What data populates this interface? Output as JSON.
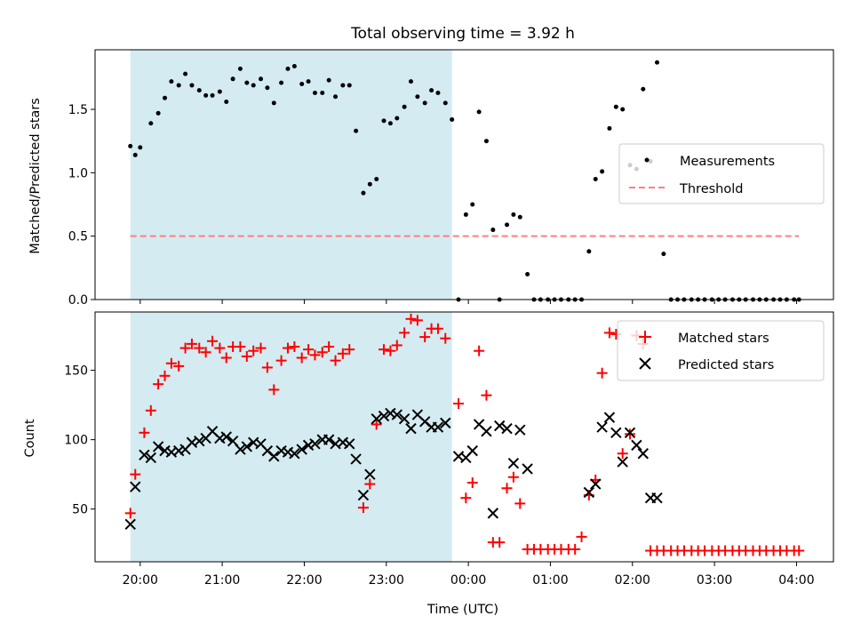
{
  "title": "Total observing time = 3.92 h",
  "colors": {
    "shade": "#add8e6",
    "threshold": "#ff7f7f",
    "measurement": "#000000",
    "matched": "#ff0000",
    "predicted": "#000000",
    "axis": "#000000"
  },
  "chart_data": [
    {
      "type": "scatter",
      "ylabel": "Matched/Predicted stars",
      "xlim_hours": [
        19.45,
        28.45
      ],
      "ylim": [
        0,
        1.97
      ],
      "yticks": [
        0.0,
        0.5,
        1.0,
        1.5
      ],
      "yticklabels": [
        "0.0",
        "0.5",
        "1.0",
        "1.5"
      ],
      "shaded_span_hours": [
        19.88,
        23.8
      ],
      "legend": {
        "position": "center-right",
        "entries": [
          "Measurements",
          "Threshold"
        ]
      },
      "threshold": {
        "name": "Threshold",
        "y": 0.5,
        "x_range_hours": [
          19.88,
          28.03
        ]
      },
      "series": [
        {
          "name": "Measurements",
          "marker": "dot",
          "x": [
            19.88,
            19.94,
            20.0,
            20.13,
            20.22,
            20.3,
            20.38,
            20.47,
            20.55,
            20.63,
            20.72,
            20.8,
            20.88,
            20.97,
            21.05,
            21.13,
            21.22,
            21.3,
            21.38,
            21.47,
            21.55,
            21.63,
            21.72,
            21.8,
            21.88,
            21.97,
            22.05,
            22.13,
            22.22,
            22.3,
            22.38,
            22.47,
            22.55,
            22.63,
            22.72,
            22.8,
            22.88,
            22.97,
            23.05,
            23.13,
            23.22,
            23.3,
            23.38,
            23.47,
            23.55,
            23.63,
            23.72,
            23.8,
            23.88,
            23.97,
            24.05,
            24.13,
            24.22,
            24.3,
            24.38,
            24.47,
            24.55,
            24.63,
            24.72,
            24.8,
            24.88,
            24.97,
            25.05,
            25.13,
            25.22,
            25.3,
            25.38,
            25.47,
            25.55,
            25.63,
            25.72,
            25.8,
            25.88,
            25.97,
            26.05,
            26.13,
            26.22,
            26.3,
            26.38,
            26.47,
            26.55,
            26.63,
            26.72,
            26.8,
            26.88,
            26.97,
            27.05,
            27.13,
            27.22,
            27.3,
            27.38,
            27.47,
            27.55,
            27.63,
            27.72,
            27.8,
            27.88,
            27.97,
            28.03
          ],
          "y": [
            1.21,
            1.14,
            1.2,
            1.39,
            1.47,
            1.59,
            1.72,
            1.69,
            1.78,
            1.69,
            1.65,
            1.61,
            1.61,
            1.64,
            1.56,
            1.74,
            1.82,
            1.71,
            1.69,
            1.74,
            1.67,
            1.55,
            1.71,
            1.82,
            1.84,
            1.7,
            1.72,
            1.63,
            1.63,
            1.73,
            1.6,
            1.69,
            1.69,
            1.33,
            0.84,
            0.91,
            0.95,
            1.41,
            1.39,
            1.43,
            1.52,
            1.72,
            1.6,
            1.55,
            1.65,
            1.63,
            1.55,
            1.42,
            0.0,
            0.67,
            0.75,
            1.48,
            1.25,
            0.55,
            0.0,
            0.59,
            0.67,
            0.65,
            0.2,
            0.0,
            0.0,
            0.0,
            0.0,
            0.0,
            0.0,
            0.0,
            0.0,
            0.38,
            0.95,
            1.01,
            1.35,
            1.52,
            1.5,
            1.06,
            1.03,
            1.66,
            1.09,
            1.87,
            0.36,
            0.0,
            0.0,
            0.0,
            0.0,
            0.0,
            0.0,
            0.0,
            0.0,
            0.0,
            0.0,
            0.0,
            0.0,
            0.0,
            0.0,
            0.0,
            0.0,
            0.0,
            0.0,
            0.0,
            0.0
          ]
        }
      ]
    },
    {
      "type": "scatter",
      "xlabel": "Time (UTC)",
      "ylabel": "Count",
      "xlim_hours": [
        19.45,
        28.45
      ],
      "ylim": [
        12,
        192
      ],
      "yticks": [
        50,
        100,
        150
      ],
      "yticklabels": [
        "50",
        "100",
        "150"
      ],
      "xticks_hours": [
        20,
        21,
        22,
        23,
        24,
        25,
        26,
        27,
        28
      ],
      "xticklabels": [
        "20:00",
        "21:00",
        "22:00",
        "23:00",
        "00:00",
        "01:00",
        "02:00",
        "03:00",
        "04:00"
      ],
      "shaded_span_hours": [
        19.88,
        23.8
      ],
      "legend": {
        "position": "top-right",
        "entries": [
          "Matched stars",
          "Predicted stars"
        ]
      },
      "series": [
        {
          "name": "Matched stars",
          "marker": "plus",
          "x": [
            19.88,
            19.94,
            20.05,
            20.13,
            20.22,
            20.3,
            20.38,
            20.47,
            20.55,
            20.63,
            20.72,
            20.8,
            20.88,
            20.97,
            21.05,
            21.13,
            21.22,
            21.3,
            21.38,
            21.47,
            21.55,
            21.63,
            21.72,
            21.8,
            21.88,
            21.97,
            22.05,
            22.13,
            22.22,
            22.3,
            22.38,
            22.47,
            22.55,
            22.72,
            22.8,
            22.88,
            22.97,
            23.05,
            23.13,
            23.22,
            23.3,
            23.38,
            23.47,
            23.55,
            23.63,
            23.72,
            23.88,
            23.97,
            24.05,
            24.13,
            24.22,
            24.3,
            24.38,
            24.47,
            24.55,
            24.63,
            24.72,
            24.8,
            24.88,
            24.97,
            25.05,
            25.13,
            25.22,
            25.3,
            25.38,
            25.47,
            25.55,
            25.63,
            25.72,
            25.8,
            25.88,
            25.97,
            26.05,
            26.13,
            26.22,
            26.3,
            26.38,
            26.47,
            26.55,
            26.63,
            26.72,
            26.8,
            26.88,
            26.97,
            27.05,
            27.13,
            27.22,
            27.3,
            27.38,
            27.47,
            27.55,
            27.63,
            27.72,
            27.8,
            27.88,
            27.97,
            28.03
          ],
          "y": [
            47,
            75,
            105,
            121,
            140,
            146,
            155,
            153,
            166,
            169,
            166,
            163,
            171,
            166,
            159,
            167,
            167,
            160,
            164,
            166,
            152,
            136,
            157,
            166,
            167,
            159,
            165,
            161,
            163,
            167,
            157,
            162,
            165,
            51,
            68,
            111,
            165,
            164,
            168,
            177,
            187,
            186,
            174,
            180,
            180,
            173,
            126,
            58,
            69,
            164,
            132,
            26,
            26,
            65,
            73,
            54,
            21,
            21,
            21,
            21,
            21,
            21,
            21,
            21,
            30,
            60,
            71,
            148,
            177,
            176,
            90,
            104,
            175,
            169,
            20,
            20,
            20,
            20,
            20,
            20,
            20,
            20,
            20,
            20,
            20,
            20,
            20,
            20,
            20,
            20,
            20,
            20,
            20,
            20,
            20,
            20,
            20
          ]
        },
        {
          "name": "Predicted stars",
          "marker": "x",
          "x": [
            19.88,
            19.94,
            20.05,
            20.13,
            20.22,
            20.3,
            20.38,
            20.47,
            20.55,
            20.63,
            20.72,
            20.8,
            20.88,
            20.97,
            21.05,
            21.13,
            21.22,
            21.3,
            21.38,
            21.47,
            21.55,
            21.63,
            21.72,
            21.8,
            21.88,
            21.97,
            22.05,
            22.13,
            22.22,
            22.3,
            22.38,
            22.47,
            22.55,
            22.63,
            22.72,
            22.8,
            22.88,
            22.97,
            23.05,
            23.13,
            23.22,
            23.3,
            23.38,
            23.47,
            23.55,
            23.63,
            23.72,
            23.88,
            23.97,
            24.05,
            24.13,
            24.22,
            24.3,
            24.38,
            24.47,
            24.55,
            24.63,
            24.72,
            25.47,
            25.55,
            25.63,
            25.72,
            25.8,
            25.88,
            25.97,
            26.05,
            26.13,
            26.22,
            26.3
          ],
          "y": [
            39,
            66,
            89,
            87,
            95,
            92,
            91,
            92,
            93,
            98,
            99,
            101,
            106,
            101,
            102,
            99,
            93,
            95,
            98,
            97,
            92,
            88,
            92,
            91,
            90,
            93,
            96,
            97,
            100,
            100,
            97,
            98,
            97,
            86,
            60,
            75,
            115,
            117,
            119,
            118,
            115,
            108,
            118,
            113,
            109,
            109,
            112,
            88,
            87,
            92,
            111,
            106,
            47,
            110,
            108,
            83,
            107,
            79,
            62,
            68,
            109,
            116,
            105,
            84,
            105,
            96,
            90,
            58,
            58
          ]
        }
      ]
    }
  ]
}
